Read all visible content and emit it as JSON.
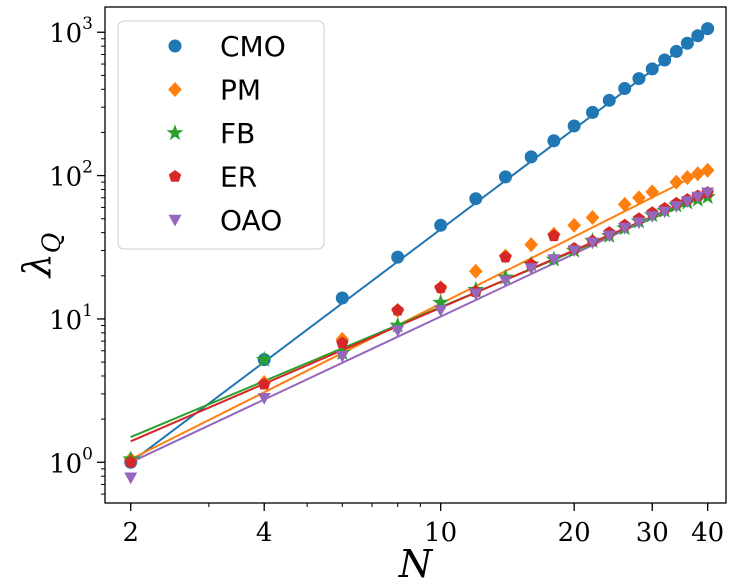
{
  "chart_data": {
    "type": "scatter",
    "xscale": "log",
    "yscale": "log",
    "xlim": [
      1.75,
      44
    ],
    "ylim": [
      0.52,
      1500
    ],
    "xlabel": "N",
    "ylabel": "λ",
    "ylabel_subscript": "Q",
    "x_ticks": [
      {
        "value": 2,
        "label": "2"
      },
      {
        "value": 4,
        "label": "4"
      },
      {
        "value": 10,
        "label": "10"
      },
      {
        "value": 20,
        "label": "20"
      },
      {
        "value": 30,
        "label": "30"
      },
      {
        "value": 40,
        "label": "40"
      }
    ],
    "y_ticks": [
      {
        "value": 1,
        "base": "10",
        "exp": "0"
      },
      {
        "value": 10,
        "base": "10",
        "exp": "1"
      },
      {
        "value": 100,
        "base": "10",
        "exp": "2"
      },
      {
        "value": 1000,
        "base": "10",
        "exp": "3"
      }
    ],
    "legend_position": "top-left",
    "series": [
      {
        "name": "CMO",
        "color": "#1f77b4",
        "marker": "circle",
        "x": [
          2,
          4,
          6,
          8,
          10,
          12,
          14,
          16,
          18,
          20,
          22,
          24,
          26,
          28,
          30,
          32,
          34,
          36,
          38,
          40
        ],
        "y": [
          1.0,
          5.2,
          14,
          27,
          45,
          69,
          98,
          135,
          175,
          222,
          276,
          335,
          405,
          475,
          555,
          640,
          735,
          838,
          945,
          1060
        ],
        "fit": {
          "x": [
            2,
            40
          ],
          "y": [
            1.0,
            1060
          ]
        }
      },
      {
        "name": "PM",
        "color": "#ff7f0e",
        "marker": "diamond",
        "x": [
          2,
          4,
          6,
          8,
          10,
          12,
          14,
          16,
          18,
          20,
          22,
          26,
          28,
          30,
          34,
          36,
          38,
          40
        ],
        "y": [
          1.05,
          3.6,
          7.2,
          11.5,
          16.5,
          21.5,
          27.5,
          33,
          39,
          45,
          51,
          63,
          70,
          77,
          90,
          97,
          103,
          109
        ],
        "fit": {
          "x": [
            2,
            40
          ],
          "y": [
            1.05,
            110
          ]
        }
      },
      {
        "name": "FB",
        "color": "#2ca02c",
        "marker": "star",
        "x": [
          2,
          4,
          6,
          8,
          10,
          12,
          14,
          16,
          18,
          20,
          22,
          24,
          26,
          28,
          30,
          32,
          34,
          36,
          38,
          40
        ],
        "y": [
          1.05,
          5.2,
          5.8,
          9.0,
          13,
          16,
          19.5,
          24,
          26,
          30,
          35,
          38,
          43,
          48,
          53,
          57,
          62,
          65,
          68,
          71
        ],
        "fit": {
          "x": [
            2,
            40
          ],
          "y": [
            1.5,
            73
          ]
        }
      },
      {
        "name": "ER",
        "color": "#d62728",
        "marker": "pentagon",
        "x": [
          2,
          4,
          6,
          8,
          10,
          12,
          14,
          16,
          18,
          20,
          22,
          24,
          26,
          28,
          30,
          32,
          34,
          36,
          38,
          40
        ],
        "y": [
          1.0,
          3.5,
          6.8,
          11.5,
          16.5,
          15.5,
          27,
          24,
          38,
          31,
          35,
          40,
          45,
          50,
          55,
          59,
          64,
          68,
          72,
          76
        ],
        "fit": {
          "x": [
            2,
            40
          ],
          "y": [
            1.4,
            76
          ]
        }
      },
      {
        "name": "OAO",
        "color": "#9467bd",
        "marker": "triangle-down",
        "x": [
          2,
          4,
          6,
          8,
          10,
          12,
          14,
          16,
          18,
          20,
          22,
          24,
          26,
          28,
          30,
          32,
          34,
          36,
          38,
          40
        ],
        "y": [
          0.78,
          2.8,
          5.5,
          8.3,
          11.5,
          15,
          18.5,
          22.5,
          26,
          30,
          34,
          38,
          43,
          47,
          52,
          56,
          61,
          66,
          71,
          76
        ],
        "fit": {
          "x": [
            2,
            40
          ],
          "y": [
            1.0,
            78
          ]
        }
      }
    ]
  }
}
